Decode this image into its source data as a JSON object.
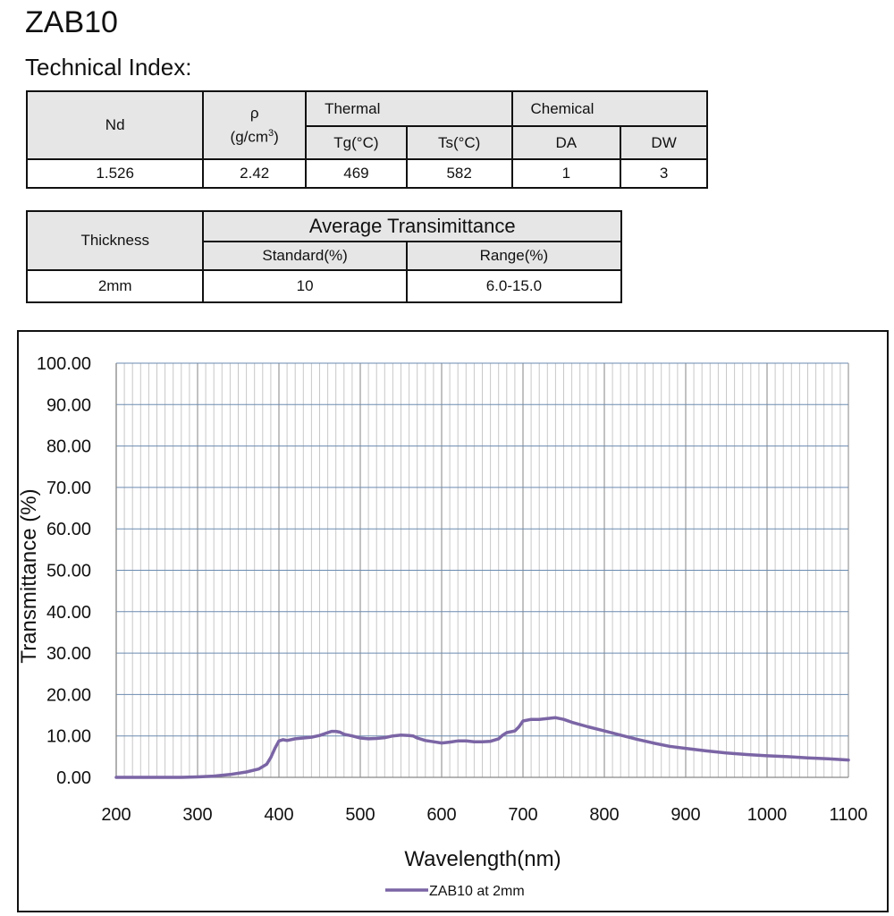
{
  "header": {
    "title": "ZAB10",
    "subtitle": "Technical Index:"
  },
  "table1": {
    "nd_label": "Nd",
    "rho_label": "ρ",
    "rho_unit_base": "(g/cm",
    "rho_unit_exp": "3",
    "rho_unit_close": ")",
    "thermal_label": "Thermal",
    "chemical_label": "Chemical",
    "tg_label": "Tg(°C)",
    "ts_label": "Ts(°C)",
    "da_label": "DA",
    "dw_label": "DW",
    "nd_value": "1.526",
    "rho_value": "2.42",
    "tg_value": "469",
    "ts_value": "582",
    "da_value": "1",
    "dw_value": "3"
  },
  "table2": {
    "thickness_label": "Thickness",
    "avg_label": "Average Transimittance",
    "standard_label": "Standard(%)",
    "range_label": "Range(%)",
    "thickness_value": "2mm",
    "standard_value": "10",
    "range_value": "6.0-15.0"
  },
  "chart_data": {
    "type": "line",
    "xlabel": "Wavelength(nm)",
    "ylabel": "Transmittance (%)",
    "xlim": [
      200,
      1100
    ],
    "ylim": [
      0,
      100
    ],
    "x_ticks": [
      "200",
      "300",
      "400",
      "500",
      "600",
      "700",
      "800",
      "900",
      "1000",
      "1100"
    ],
    "y_ticks": [
      "0.00",
      "10.00",
      "20.00",
      "30.00",
      "40.00",
      "50.00",
      "60.00",
      "70.00",
      "80.00",
      "90.00",
      "100.00"
    ],
    "grid": true,
    "legend_position": "bottom-center",
    "line_color": "#7b65a5",
    "series": [
      {
        "name": "ZAB10 at 2mm",
        "x": [
          200,
          280,
          300,
          320,
          340,
          360,
          375,
          385,
          390,
          395,
          400,
          405,
          410,
          420,
          430,
          440,
          450,
          460,
          465,
          470,
          475,
          480,
          490,
          500,
          510,
          520,
          530,
          540,
          550,
          560,
          565,
          570,
          580,
          590,
          600,
          610,
          620,
          630,
          640,
          650,
          660,
          670,
          675,
          680,
          690,
          695,
          700,
          710,
          720,
          730,
          740,
          750,
          760,
          780,
          800,
          820,
          840,
          860,
          880,
          900,
          925,
          950,
          975,
          1000,
          1025,
          1050,
          1075,
          1100
        ],
        "values": [
          0,
          0,
          0.1,
          0.3,
          0.7,
          1.3,
          2.0,
          3.2,
          4.8,
          7.0,
          8.8,
          9.1,
          8.9,
          9.3,
          9.5,
          9.7,
          10.1,
          10.8,
          11.1,
          11.1,
          10.9,
          10.4,
          10.0,
          9.5,
          9.3,
          9.4,
          9.6,
          10.0,
          10.2,
          10.1,
          10.0,
          9.5,
          8.9,
          8.6,
          8.3,
          8.5,
          8.8,
          8.8,
          8.6,
          8.6,
          8.7,
          9.3,
          10.2,
          10.8,
          11.2,
          12.2,
          13.6,
          14.0,
          14.0,
          14.2,
          14.4,
          14.0,
          13.3,
          12.2,
          11.2,
          10.2,
          9.2,
          8.3,
          7.5,
          7.0,
          6.4,
          5.9,
          5.5,
          5.2,
          5.0,
          4.7,
          4.5,
          4.2
        ]
      }
    ]
  }
}
